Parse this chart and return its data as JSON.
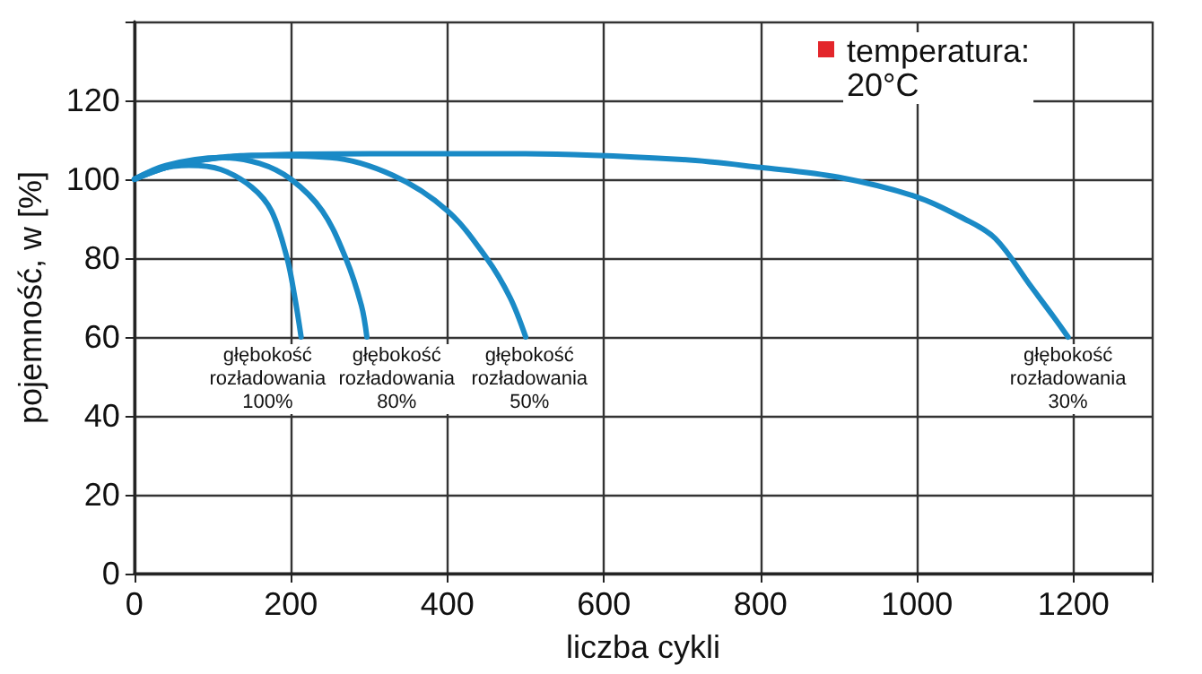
{
  "chart_data": {
    "type": "line",
    "xlabel": "liczba cykli",
    "ylabel": "pojemność, w [%]",
    "xlim": [
      0,
      1300
    ],
    "xticks": [
      0,
      200,
      400,
      600,
      800,
      1000,
      1200,
      {
        "value": 1300,
        "label": null
      }
    ],
    "ylim": [
      0,
      140
    ],
    "yticks": [
      0,
      20,
      40,
      60,
      80,
      100,
      120,
      {
        "value": 140,
        "label": null
      }
    ],
    "grid": true,
    "marker": "none",
    "line_style": "solid",
    "series": [
      {
        "color": "#1a8ac6",
        "x": [
          0,
          30,
          70,
          110,
          150,
          175,
          195,
          205,
          213
        ],
        "values": [
          100,
          102.5,
          103.5,
          102.5,
          98,
          92,
          80,
          70,
          60
        ]
      },
      {
        "color": "#1a8ac6",
        "x": [
          0,
          40,
          110,
          160,
          200,
          240,
          270,
          290,
          297
        ],
        "values": [
          100,
          103.5,
          105.5,
          104,
          100,
          92,
          80,
          68,
          60
        ]
      },
      {
        "color": "#1a8ac6",
        "x": [
          0,
          60,
          150,
          250,
          330,
          400,
          450,
          480,
          500
        ],
        "values": [
          100,
          104,
          106,
          105.5,
          101,
          92,
          80,
          70,
          60
        ]
      },
      {
        "color": "#1a8ac6",
        "x": [
          0,
          60,
          150,
          300,
          500,
          700,
          800,
          900,
          1000,
          1060,
          1100,
          1145,
          1175,
          1193
        ],
        "values": [
          100,
          104,
          106,
          106.5,
          106.5,
          105,
          103,
          100.5,
          95.5,
          90,
          85,
          73,
          65,
          60
        ]
      }
    ],
    "annotations": [
      "głębokość\nrozładowania\n100%",
      "głębokość\nrozładowania\n80%",
      "głębokość\nrozładowania\n50%",
      "głębokość\nrozładowania\n30%",
      "temperatura:\n20°C"
    ]
  }
}
